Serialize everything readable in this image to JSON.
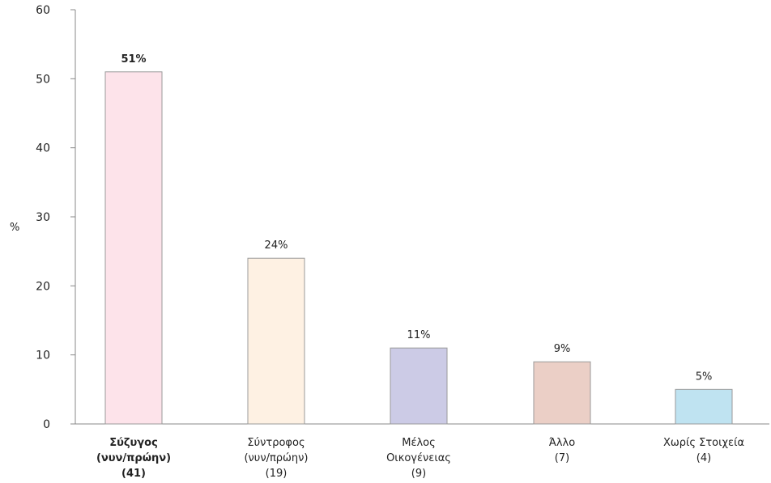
{
  "chart_data": {
    "type": "bar",
    "ylabel": "%",
    "ylim": [
      0,
      60
    ],
    "yticks": [
      0,
      10,
      20,
      30,
      40,
      50,
      60
    ],
    "grid": false,
    "categories": [
      {
        "lines": [
          "Σύζυγος",
          "(νυν/πρώην)",
          "(41)"
        ],
        "value": 51,
        "label": "51%",
        "color": "#fde3ea",
        "bold": true
      },
      {
        "lines": [
          "Σύντροφος",
          "(νυν/πρώην)",
          "(19)"
        ],
        "value": 24,
        "label": "24%",
        "color": "#fef1e3",
        "bold": false
      },
      {
        "lines": [
          "Μέλος",
          "Οικογένειας",
          "(9)"
        ],
        "value": 11,
        "label": "11%",
        "color": "#cccbe6",
        "bold": false
      },
      {
        "lines": [
          "Άλλο",
          "(7)"
        ],
        "value": 9,
        "label": "9%",
        "color": "#ebcfc6",
        "bold": false
      },
      {
        "lines": [
          "Χωρίς Στοιχεία",
          "(4)"
        ],
        "value": 5,
        "label": "5%",
        "color": "#bfe3f1",
        "bold": false
      }
    ]
  }
}
